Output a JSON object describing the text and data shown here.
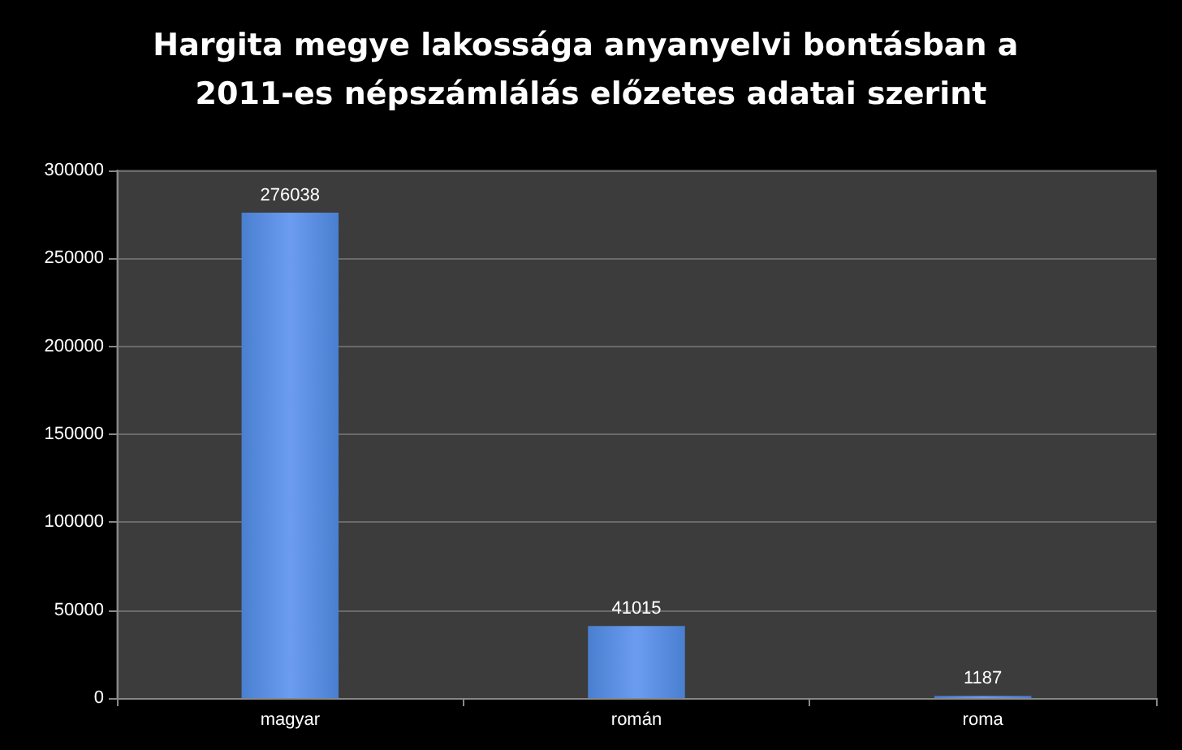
{
  "chart_data": {
    "type": "bar",
    "title": "Hargita megye lakossága anyanyelvi bontásban a 2011-es népszámlálás előzetes adatai szerint",
    "categories": [
      "magyar",
      "román",
      "roma"
    ],
    "values": [
      276038,
      41015,
      1187
    ],
    "color": "#4a7fd0",
    "ylim": [
      0,
      300000
    ],
    "yticks": [
      0,
      50000,
      100000,
      150000,
      200000,
      250000,
      300000
    ],
    "grid": "y",
    "data_labels": true
  }
}
